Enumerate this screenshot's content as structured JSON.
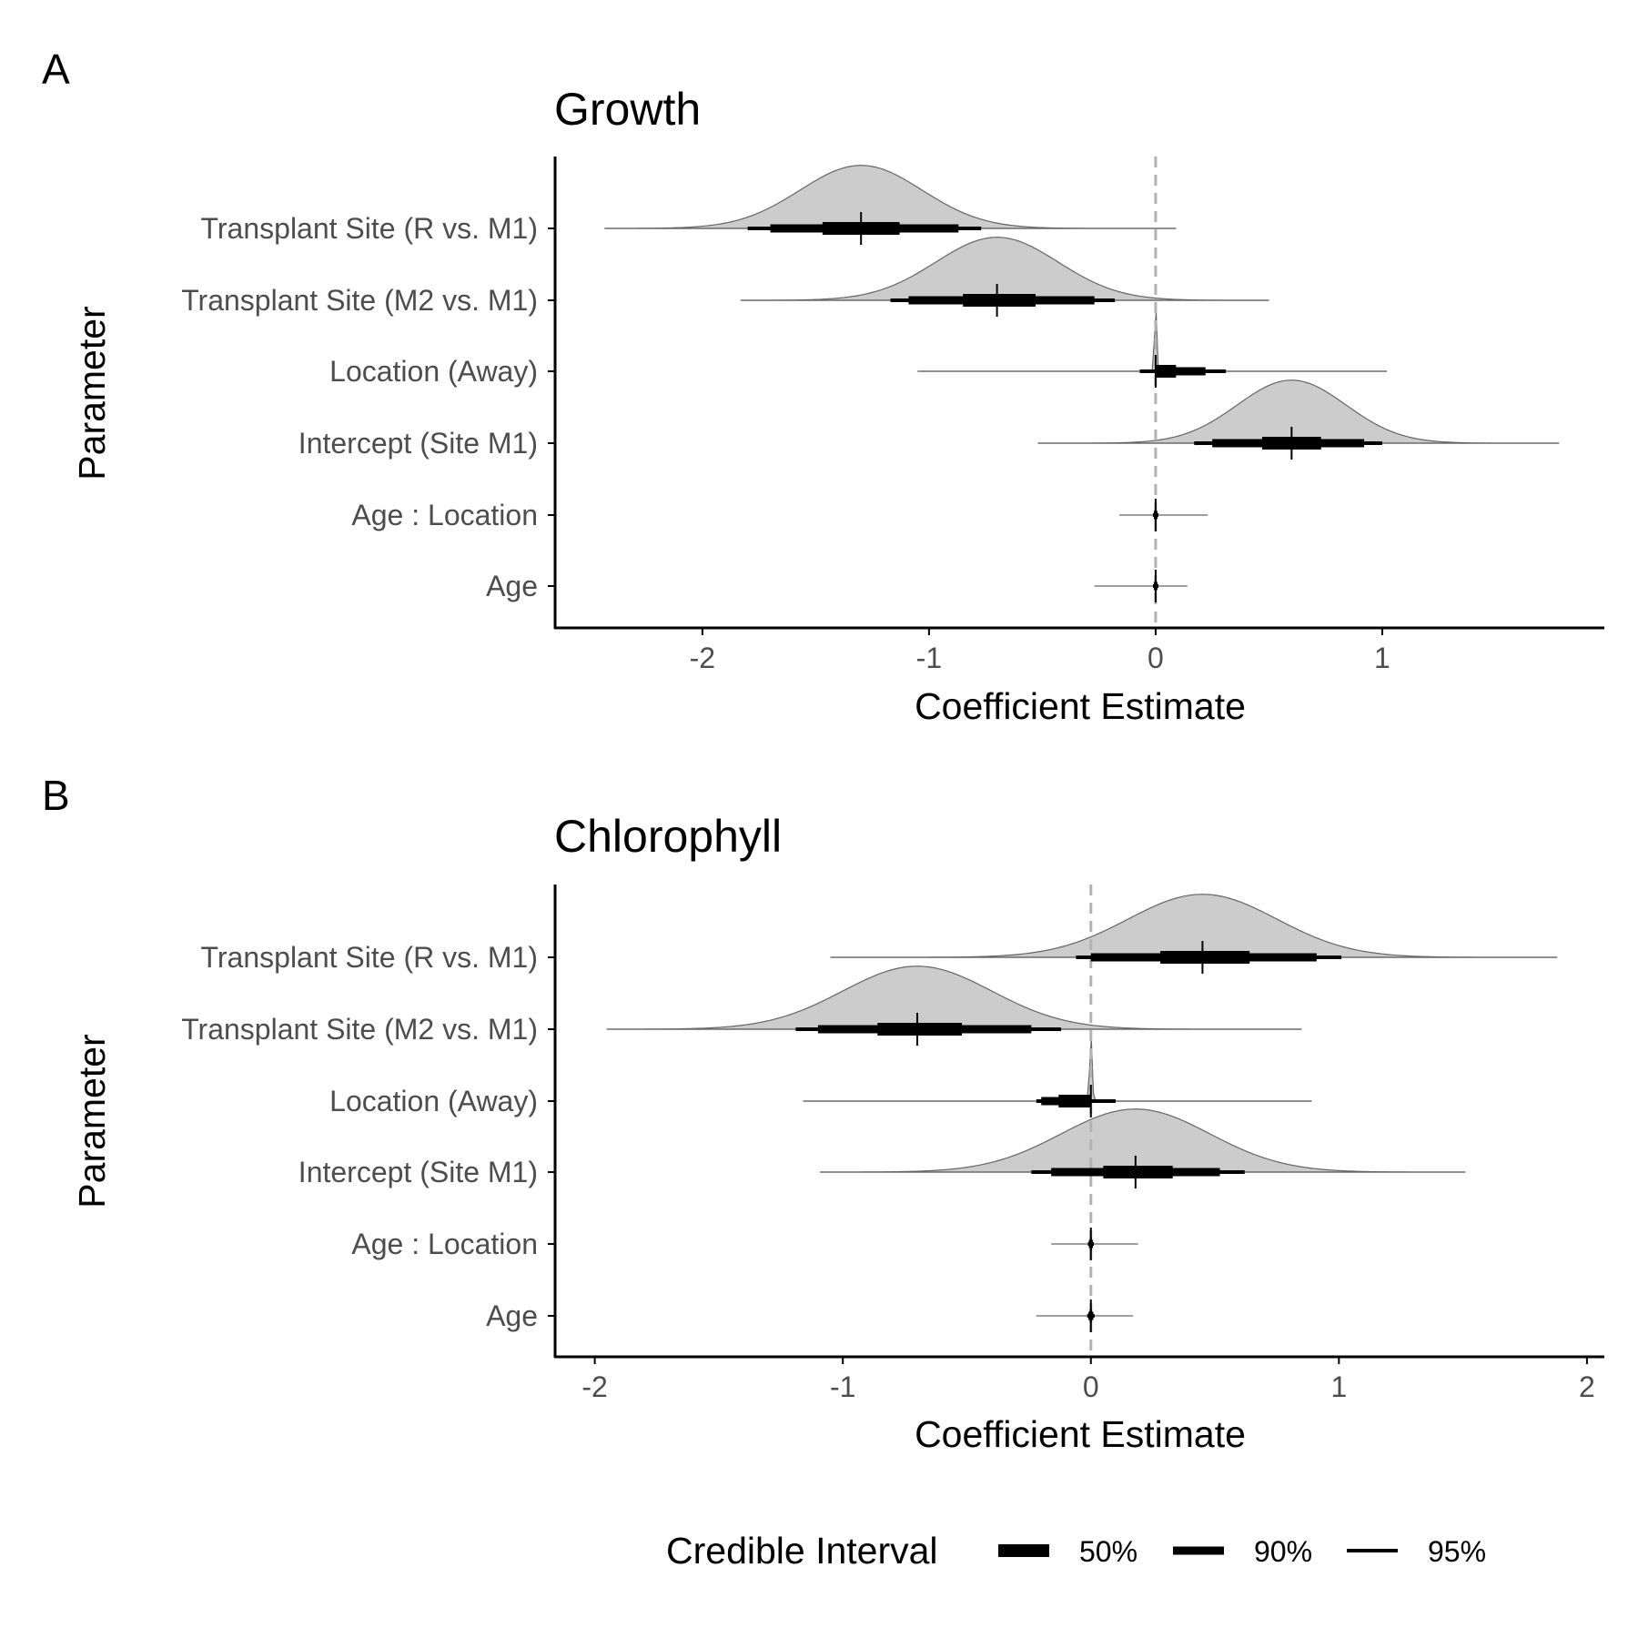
{
  "chart_data": [
    {
      "type": "halfeye",
      "panel_tag": "A",
      "title": "Growth",
      "xlabel": "Coefficient Estimate",
      "ylabel": "Parameter",
      "xlim": [
        -2.65,
        1.98
      ],
      "xticks": [
        -2,
        -1,
        0,
        1
      ],
      "xtick_labels": [
        "-2",
        "-1",
        "0",
        "1"
      ],
      "reference_line": 0,
      "categories": [
        "Transplant Site (R vs. M1)",
        "Transplant Site (M2 vs. M1)",
        "Location (Away)",
        "Intercept (Site M1)",
        "Age : Location",
        "Age"
      ],
      "parameters": [
        {
          "label": "Transplant Site (R vs. M1)",
          "median": -1.3,
          "ci50": [
            -1.47,
            -1.13
          ],
          "ci90": [
            -1.7,
            -0.87
          ],
          "ci95": [
            -1.8,
            -0.77
          ],
          "range": [
            -2.43,
            0.09
          ],
          "mode": -1.3,
          "density_height": 0.88,
          "sd": 0.27
        },
        {
          "label": "Transplant Site (M2 vs. M1)",
          "median": -0.7,
          "ci50": [
            -0.85,
            -0.53
          ],
          "ci90": [
            -1.09,
            -0.27
          ],
          "ci95": [
            -1.17,
            -0.18
          ],
          "range": [
            -1.83,
            0.5
          ],
          "mode": -0.7,
          "density_height": 0.88,
          "sd": 0.27
        },
        {
          "label": "Location (Away)",
          "median": 0.0,
          "ci50": [
            0.0,
            0.09
          ],
          "ci90": [
            0.0,
            0.22
          ],
          "ci95": [
            -0.07,
            0.31
          ],
          "range": [
            -1.05,
            1.02
          ],
          "mode": 0.0,
          "density_height": 0.92,
          "sd": 0.005
        },
        {
          "label": "Intercept (Site M1)",
          "median": 0.6,
          "ci50": [
            0.47,
            0.73
          ],
          "ci90": [
            0.25,
            0.92
          ],
          "ci95": [
            0.17,
            1.0
          ],
          "range": [
            -0.52,
            1.78
          ],
          "mode": 0.6,
          "density_height": 0.88,
          "sd": 0.24
        },
        {
          "label": "Age : Location",
          "median": 0.0,
          "ci50": [
            -0.004,
            0.004
          ],
          "ci90": [
            -0.008,
            0.008
          ],
          "ci95": [
            -0.012,
            0.012
          ],
          "range": [
            -0.16,
            0.23
          ],
          "mode": 0.0,
          "density_height": 0.0,
          "sd": 0.01
        },
        {
          "label": "Age",
          "median": 0.0,
          "ci50": [
            -0.004,
            0.004
          ],
          "ci90": [
            -0.008,
            0.008
          ],
          "ci95": [
            -0.012,
            0.012
          ],
          "range": [
            -0.27,
            0.14
          ],
          "mode": 0.0,
          "density_height": 0.0,
          "sd": 0.01
        }
      ]
    },
    {
      "type": "halfeye",
      "panel_tag": "B",
      "title": "Chlorophyll",
      "xlabel": "Coefficient Estimate",
      "ylabel": "Parameter",
      "xlim": [
        -2.16,
        2.07
      ],
      "xticks": [
        -2,
        -1,
        0,
        1,
        2
      ],
      "xtick_labels": [
        "-2",
        "-1",
        "0",
        "1",
        "2"
      ],
      "reference_line": 0,
      "categories": [
        "Transplant Site (R vs. M1)",
        "Transplant Site (M2 vs. M1)",
        "Location (Away)",
        "Intercept (Site M1)",
        "Age : Location",
        "Age"
      ],
      "parameters": [
        {
          "label": "Transplant Site (R vs. M1)",
          "median": 0.45,
          "ci50": [
            0.28,
            0.64
          ],
          "ci90": [
            0.0,
            0.91
          ],
          "ci95": [
            -0.06,
            1.01
          ],
          "range": [
            -1.05,
            1.88
          ],
          "mode": 0.45,
          "density_height": 0.88,
          "sd": 0.3
        },
        {
          "label": "Transplant Site (M2 vs. M1)",
          "median": -0.7,
          "ci50": [
            -0.86,
            -0.52
          ],
          "ci90": [
            -1.1,
            -0.24
          ],
          "ci95": [
            -1.19,
            -0.12
          ],
          "range": [
            -1.95,
            0.85
          ],
          "mode": -0.7,
          "density_height": 0.88,
          "sd": 0.3
        },
        {
          "label": "Location (Away)",
          "median": 0.0,
          "ci50": [
            -0.13,
            0.0
          ],
          "ci90": [
            -0.2,
            0.0
          ],
          "ci95": [
            -0.22,
            0.1
          ],
          "range": [
            -1.16,
            0.89
          ],
          "mode": 0.0,
          "density_height": 0.92,
          "sd": 0.005
        },
        {
          "label": "Intercept (Site M1)",
          "median": 0.18,
          "ci50": [
            0.05,
            0.33
          ],
          "ci90": [
            -0.16,
            0.52
          ],
          "ci95": [
            -0.24,
            0.62
          ],
          "range": [
            -1.09,
            1.51
          ],
          "mode": 0.18,
          "density_height": 0.88,
          "sd": 0.3
        },
        {
          "label": "Age : Location",
          "median": 0.0,
          "ci50": [
            -0.004,
            0.004
          ],
          "ci90": [
            -0.008,
            0.008
          ],
          "ci95": [
            -0.012,
            0.012
          ],
          "range": [
            -0.16,
            0.19
          ],
          "mode": 0.0,
          "density_height": 0.0,
          "sd": 0.01
        },
        {
          "label": "Age",
          "median": 0.0,
          "ci50": [
            -0.005,
            0.005
          ],
          "ci90": [
            -0.01,
            0.01
          ],
          "ci95": [
            -0.015,
            0.015
          ],
          "range": [
            -0.22,
            0.17
          ],
          "mode": 0.0,
          "density_height": 0.0,
          "sd": 0.01
        }
      ]
    }
  ],
  "legend": {
    "title": "Credible Interval",
    "position": "bottom",
    "items": [
      {
        "label": "50%",
        "interval": "ci50"
      },
      {
        "label": "90%",
        "interval": "ci90"
      },
      {
        "label": "95%",
        "interval": "ci95"
      }
    ]
  },
  "colors": {
    "density_fill": "#cccccc",
    "density_outline": "#666666",
    "interval": "#000000",
    "reference_line": "#b3b3b3",
    "axis": "#000000",
    "tick_label": "#4d4d4d",
    "text": "#000000"
  }
}
